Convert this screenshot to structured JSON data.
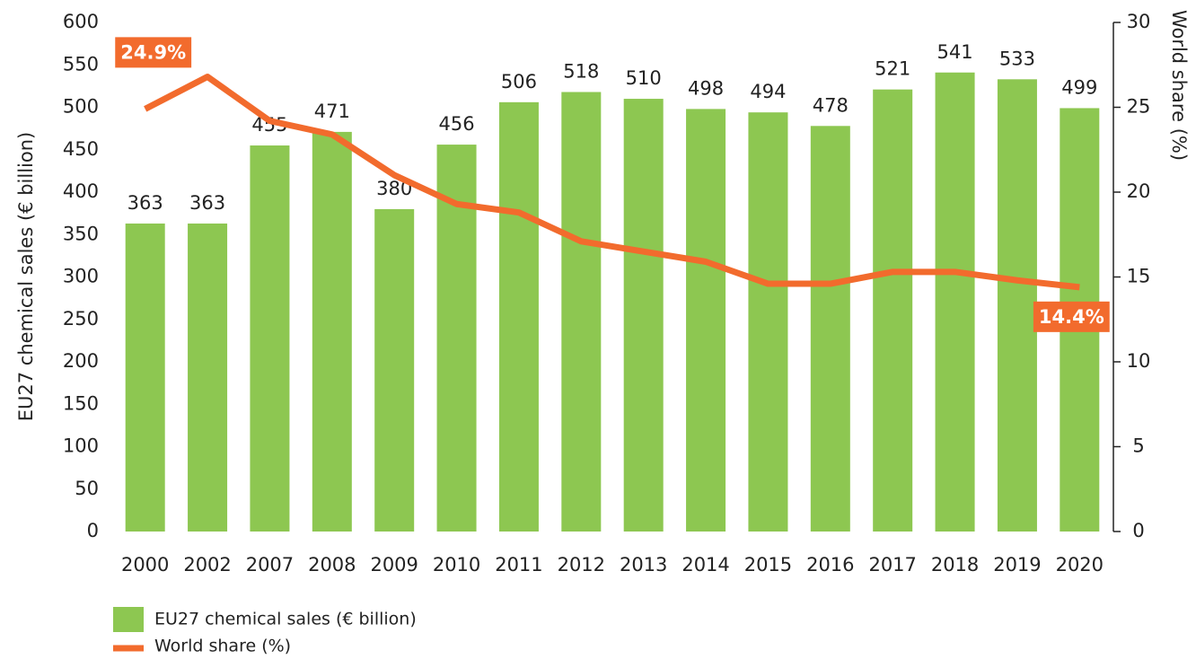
{
  "chart_data": {
    "type": "bar_line",
    "categories": [
      "2000",
      "2002",
      "2007",
      "2008",
      "2009",
      "2010",
      "2011",
      "2012",
      "2013",
      "2014",
      "2015",
      "2016",
      "2017",
      "2018",
      "2019",
      "2020"
    ],
    "series": [
      {
        "name": "EU27 chemical sales (€ billion)",
        "type": "bar",
        "color": "#8dc751",
        "values": [
          363,
          363,
          455,
          471,
          380,
          456,
          506,
          518,
          510,
          498,
          494,
          478,
          521,
          541,
          533,
          499
        ]
      },
      {
        "name": "World share (%)",
        "type": "line",
        "axis": "y2",
        "color": "#f26b2d",
        "values": [
          24.9,
          26.8,
          24.2,
          23.4,
          21.0,
          19.3,
          18.8,
          17.1,
          16.5,
          15.9,
          14.6,
          14.6,
          15.3,
          15.3,
          14.8,
          14.4
        ],
        "value_labels": [
          "24.9%",
          null,
          null,
          null,
          null,
          null,
          null,
          null,
          null,
          null,
          null,
          null,
          null,
          null,
          null,
          "14.4%"
        ]
      }
    ],
    "y_label": "EU27 chemical sales (€ billion)",
    "y2_label": "World share (%)",
    "ylim": [
      0,
      600
    ],
    "yticks": [
      0,
      50,
      100,
      150,
      200,
      250,
      300,
      350,
      400,
      450,
      500,
      550,
      600
    ],
    "y2lim": [
      0,
      30
    ],
    "y2ticks": [
      0,
      5,
      10,
      15,
      20,
      25,
      30
    ],
    "legend": "bottom-left"
  }
}
